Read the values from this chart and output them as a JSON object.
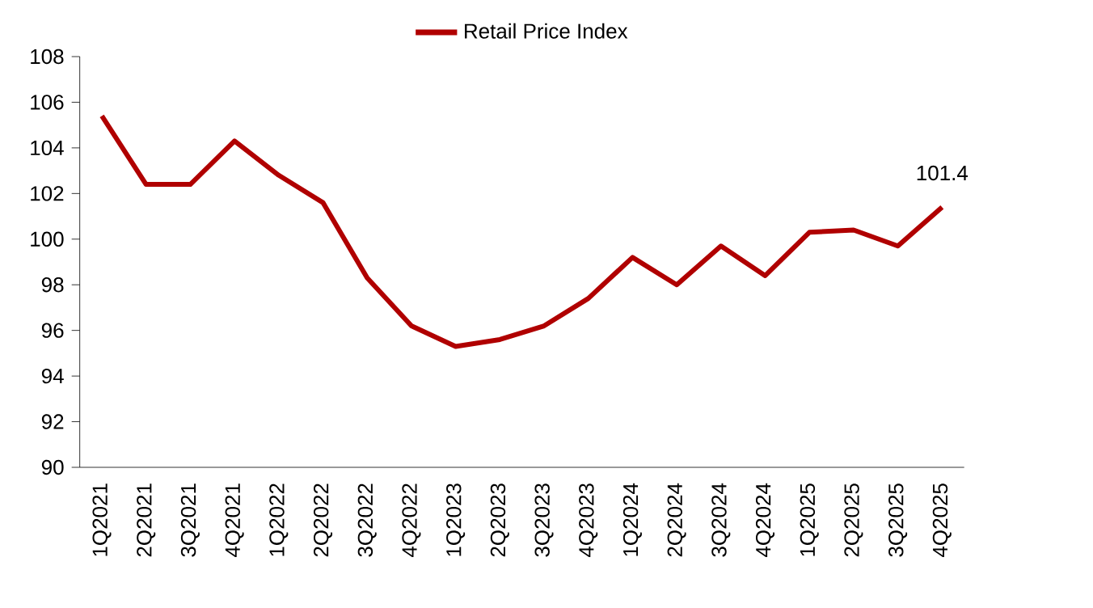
{
  "chart_data": {
    "type": "line",
    "categories": [
      "1Q2021",
      "2Q2021",
      "3Q2021",
      "4Q2021",
      "1Q2022",
      "2Q2022",
      "3Q2022",
      "4Q2022",
      "1Q2023",
      "2Q2023",
      "3Q2023",
      "4Q2023",
      "1Q2024",
      "2Q2024",
      "3Q2024",
      "4Q2024",
      "1Q2025",
      "2Q2025",
      "3Q2025",
      "4Q2025"
    ],
    "series": [
      {
        "name": "Retail Price Index",
        "color": "#b00000",
        "values": [
          105.4,
          102.4,
          102.4,
          104.3,
          102.8,
          101.6,
          98.3,
          96.2,
          95.3,
          95.6,
          96.2,
          97.4,
          99.2,
          98.0,
          99.7,
          98.4,
          100.3,
          100.4,
          99.7,
          101.4
        ],
        "value_labels": [
          null,
          null,
          null,
          null,
          null,
          null,
          null,
          null,
          null,
          null,
          null,
          null,
          null,
          null,
          null,
          null,
          null,
          null,
          null,
          "101.4"
        ]
      }
    ],
    "ylim": [
      90,
      108
    ],
    "yticks": [
      90,
      92,
      94,
      96,
      98,
      100,
      102,
      104,
      106,
      108
    ],
    "grid": false,
    "legend": "top",
    "marker": "none",
    "line_style": "solid"
  }
}
